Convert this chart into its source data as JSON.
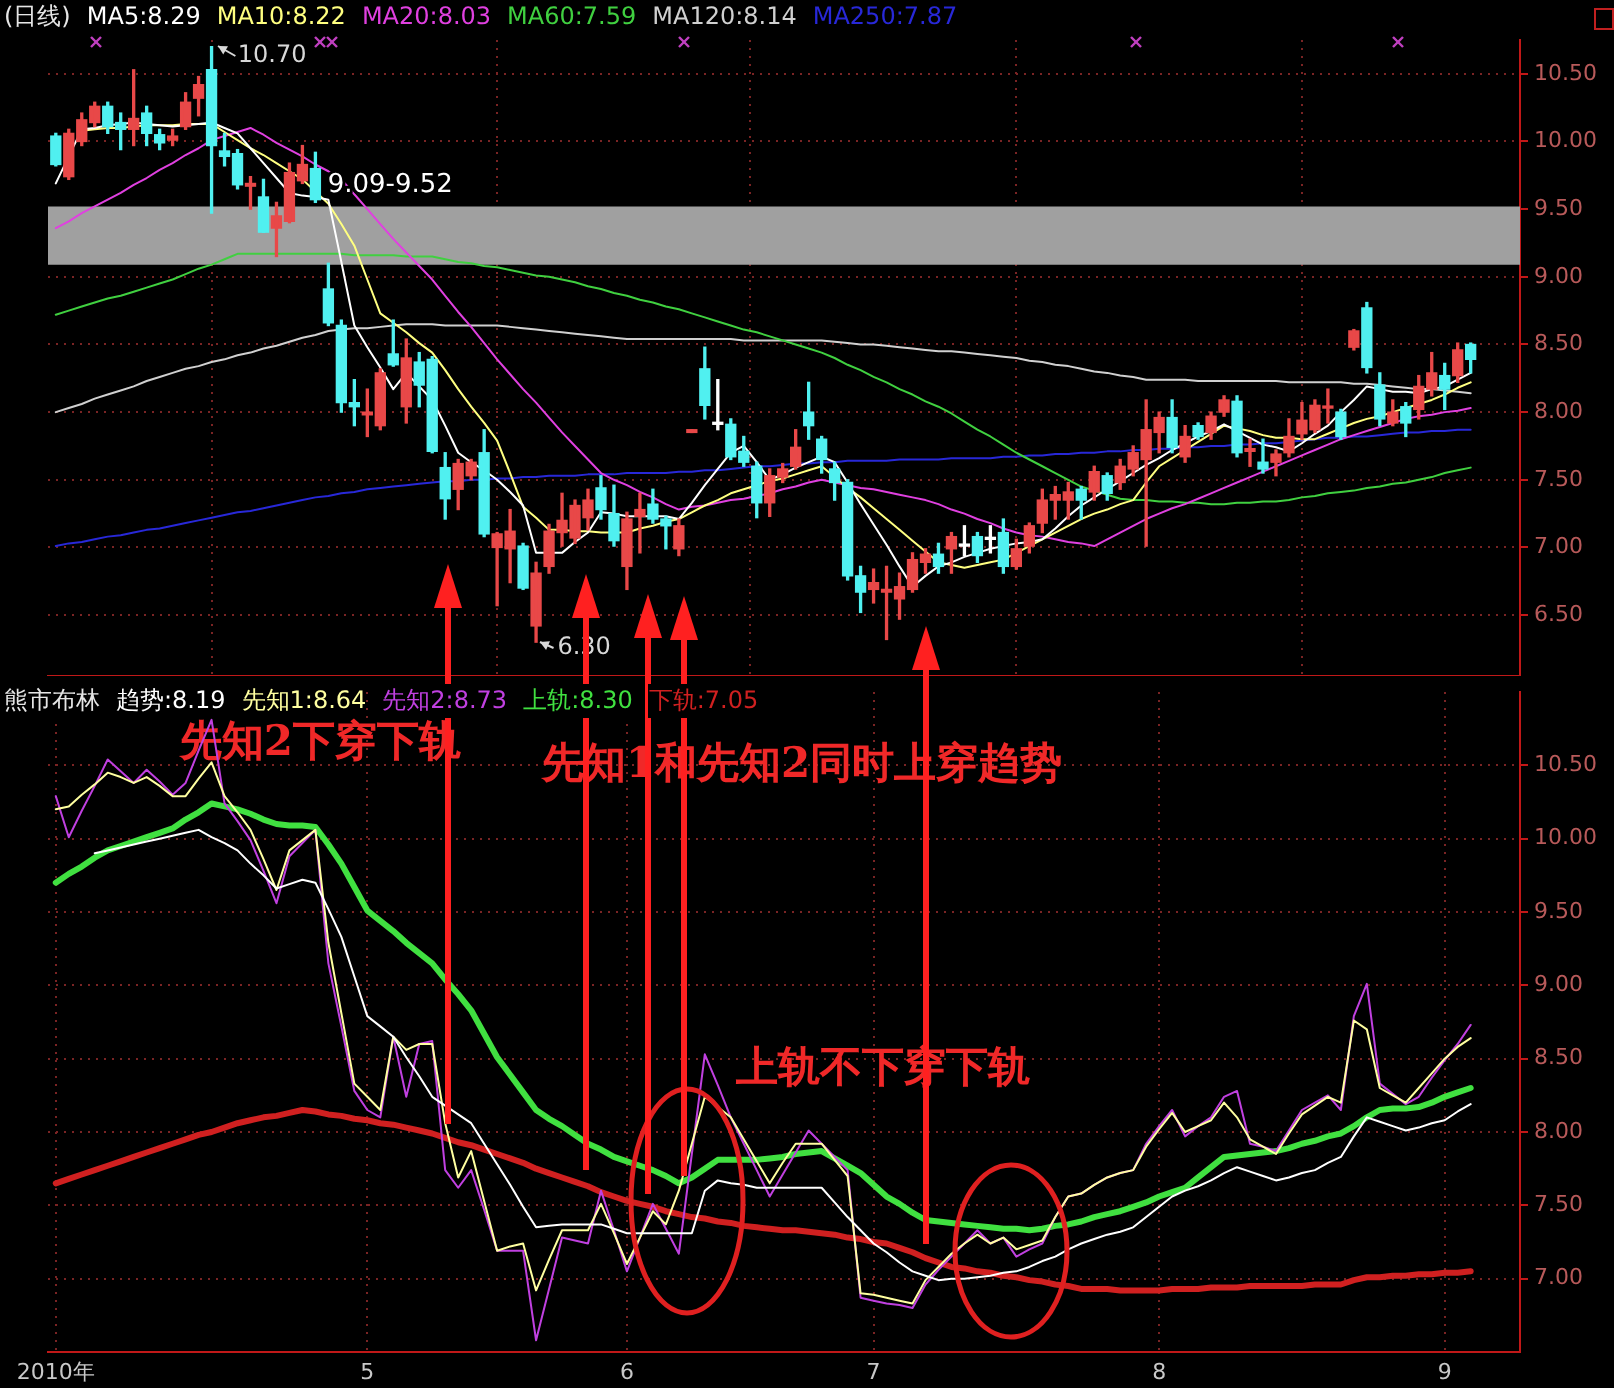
{
  "chart_data": [
    {
      "type": "candlestick",
      "title": "(日线)",
      "legend": "top left",
      "grid": true,
      "marker": "none",
      "tick_labels": "y",
      "categories": [
        null,
        null,
        null,
        null,
        null,
        null,
        null,
        null,
        null,
        null,
        null,
        null,
        null,
        null,
        null,
        null,
        null,
        null,
        null,
        null,
        null,
        null,
        null,
        null,
        null,
        null,
        null,
        null,
        null,
        null,
        null,
        null,
        null,
        null,
        null,
        null,
        null,
        null,
        null,
        null,
        null,
        null,
        null,
        null,
        null,
        null,
        null,
        null,
        null,
        null,
        null,
        null,
        null,
        null,
        null,
        null,
        null,
        null,
        null,
        null,
        null,
        null,
        null,
        null,
        null,
        null,
        null,
        null,
        null,
        null,
        null,
        null,
        null,
        null,
        null,
        null,
        null,
        null,
        null,
        null,
        null,
        null,
        null,
        null,
        null,
        null,
        null,
        null,
        null,
        null,
        null,
        null,
        null,
        null,
        null,
        null,
        null,
        null,
        null,
        null,
        null,
        null,
        null,
        null,
        null,
        null,
        null,
        null,
        null,
        null
      ],
      "ohlc": [
        [
          10.04,
          10.06,
          9.82,
          9.83
        ],
        [
          9.74,
          10.09,
          9.72,
          10.06
        ],
        [
          10.0,
          10.21,
          9.97,
          10.16
        ],
        [
          10.14,
          10.29,
          10.11,
          10.26
        ],
        [
          10.26,
          10.29,
          10.06,
          10.11
        ],
        [
          10.14,
          10.21,
          9.94,
          10.09
        ],
        [
          10.09,
          10.53,
          9.97,
          10.17
        ],
        [
          10.21,
          10.26,
          9.97,
          10.06
        ],
        [
          10.05,
          10.09,
          9.94,
          9.99
        ],
        [
          10.01,
          10.09,
          9.97,
          10.04
        ],
        [
          10.11,
          10.36,
          10.09,
          10.29
        ],
        [
          10.32,
          10.48,
          10.19,
          10.42
        ],
        [
          10.53,
          10.7,
          9.47,
          9.97
        ],
        [
          9.93,
          10.06,
          9.82,
          9.89
        ],
        [
          9.91,
          9.94,
          9.65,
          9.68
        ],
        [
          9.67,
          9.74,
          9.5,
          9.69
        ],
        [
          9.59,
          9.72,
          9.33,
          9.33
        ],
        [
          9.36,
          9.55,
          9.15,
          9.45
        ],
        [
          9.41,
          9.84,
          9.4,
          9.77
        ],
        [
          9.71,
          9.97,
          9.69,
          9.83
        ],
        [
          9.8,
          9.92,
          9.55,
          9.57
        ],
        [
          8.91,
          9.1,
          8.64,
          8.66
        ],
        [
          8.64,
          8.68,
          8.0,
          8.07
        ],
        [
          8.07,
          8.24,
          7.9,
          8.04
        ],
        [
          7.98,
          8.17,
          7.82,
          8.0
        ],
        [
          7.9,
          8.32,
          7.87,
          8.29
        ],
        [
          8.43,
          8.68,
          8.34,
          8.35
        ],
        [
          8.04,
          8.54,
          7.92,
          8.4
        ],
        [
          8.37,
          8.44,
          8.04,
          8.2
        ],
        [
          8.39,
          8.41,
          7.7,
          7.71
        ],
        [
          7.59,
          7.7,
          7.21,
          7.36
        ],
        [
          7.43,
          7.65,
          7.28,
          7.62
        ],
        [
          7.53,
          7.65,
          7.5,
          7.63
        ],
        [
          7.7,
          7.87,
          7.08,
          7.1
        ],
        [
          7.0,
          7.11,
          6.57,
          7.1
        ],
        [
          6.99,
          7.28,
          6.74,
          7.12
        ],
        [
          7.01,
          7.03,
          6.69,
          6.7
        ],
        [
          6.42,
          6.89,
          6.3,
          6.81
        ],
        [
          6.86,
          7.17,
          6.81,
          7.12
        ],
        [
          7.11,
          7.4,
          7.01,
          7.2
        ],
        [
          7.07,
          7.35,
          7.03,
          7.31
        ],
        [
          7.22,
          7.43,
          7.13,
          7.35
        ],
        [
          7.44,
          7.53,
          7.21,
          7.28
        ],
        [
          7.25,
          7.46,
          7.01,
          7.05
        ],
        [
          6.86,
          7.26,
          6.69,
          7.21
        ],
        [
          7.23,
          7.4,
          6.96,
          7.28
        ],
        [
          7.32,
          7.43,
          7.18,
          7.21
        ],
        [
          7.21,
          7.23,
          6.99,
          7.16
        ],
        [
          6.99,
          7.21,
          6.94,
          7.16
        ],
        [
          7.85,
          7.87,
          7.85,
          7.87
        ],
        [
          8.32,
          8.48,
          7.95,
          8.05
        ],
        [
          7.91,
          8.24,
          7.87,
          7.91
        ],
        [
          7.91,
          7.95,
          7.65,
          7.67
        ],
        [
          7.71,
          7.82,
          7.6,
          7.63
        ],
        [
          7.6,
          7.63,
          7.22,
          7.33
        ],
        [
          7.33,
          7.58,
          7.23,
          7.53
        ],
        [
          7.52,
          7.62,
          7.48,
          7.58
        ],
        [
          7.6,
          7.87,
          7.58,
          7.74
        ],
        [
          8.0,
          8.22,
          7.8,
          7.9
        ],
        [
          7.8,
          7.82,
          7.55,
          7.65
        ],
        [
          7.58,
          7.63,
          7.35,
          7.48
        ],
        [
          7.48,
          7.5,
          6.76,
          6.79
        ],
        [
          6.79,
          6.86,
          6.52,
          6.67
        ],
        [
          6.69,
          6.84,
          6.59,
          6.74
        ],
        [
          6.67,
          6.86,
          6.32,
          6.69
        ],
        [
          6.62,
          6.81,
          6.47,
          6.71
        ],
        [
          6.69,
          6.96,
          6.67,
          6.91
        ],
        [
          6.89,
          6.99,
          6.81,
          6.95
        ],
        [
          6.95,
          7.03,
          6.81,
          6.86
        ],
        [
          6.99,
          7.11,
          6.81,
          7.08
        ],
        [
          7.01,
          7.16,
          6.94,
          7.01
        ],
        [
          7.08,
          7.11,
          6.89,
          6.94
        ],
        [
          7.06,
          7.16,
          6.96,
          7.06
        ],
        [
          7.11,
          7.21,
          6.81,
          6.86
        ],
        [
          6.86,
          7.06,
          6.84,
          6.99
        ],
        [
          7.01,
          7.18,
          6.96,
          7.16
        ],
        [
          7.18,
          7.43,
          7.11,
          7.35
        ],
        [
          7.35,
          7.45,
          7.21,
          7.39
        ],
        [
          7.35,
          7.48,
          7.21,
          7.41
        ],
        [
          7.43,
          7.45,
          7.21,
          7.35
        ],
        [
          7.41,
          7.6,
          7.35,
          7.56
        ],
        [
          7.53,
          7.55,
          7.35,
          7.4
        ],
        [
          7.48,
          7.65,
          7.43,
          7.6
        ],
        [
          7.58,
          7.75,
          7.53,
          7.7
        ],
        [
          7.65,
          8.09,
          7.01,
          7.87
        ],
        [
          7.85,
          8.0,
          7.7,
          7.96
        ],
        [
          7.96,
          8.09,
          7.7,
          7.74
        ],
        [
          7.67,
          7.9,
          7.63,
          7.82
        ],
        [
          7.9,
          7.92,
          7.8,
          7.82
        ],
        [
          7.85,
          8.0,
          7.8,
          7.97
        ],
        [
          8.0,
          8.12,
          7.97,
          8.09
        ],
        [
          8.08,
          8.12,
          7.67,
          7.7
        ],
        [
          7.71,
          7.8,
          7.6,
          7.73
        ],
        [
          7.63,
          7.8,
          7.55,
          7.58
        ],
        [
          7.63,
          7.72,
          7.53,
          7.69
        ],
        [
          7.7,
          7.95,
          7.67,
          7.82
        ],
        [
          7.84,
          8.07,
          7.8,
          7.94
        ],
        [
          7.87,
          8.09,
          7.85,
          8.05
        ],
        [
          8.03,
          8.17,
          7.92,
          8.04
        ],
        [
          8.0,
          8.02,
          7.8,
          7.82
        ],
        [
          8.48,
          8.61,
          8.46,
          8.6
        ],
        [
          8.77,
          8.81,
          8.29,
          8.33
        ],
        [
          8.2,
          8.29,
          7.9,
          7.95
        ],
        [
          7.92,
          8.09,
          7.9,
          8.0
        ],
        [
          8.04,
          8.07,
          7.82,
          7.92
        ],
        [
          8.02,
          8.27,
          7.95,
          8.19
        ],
        [
          8.17,
          8.44,
          8.12,
          8.29
        ],
        [
          8.27,
          8.36,
          8.02,
          8.17
        ],
        [
          8.27,
          8.51,
          8.22,
          8.46
        ],
        [
          8.5,
          8.51,
          8.29,
          8.39
        ]
      ],
      "colors": [
        "#50f0f0",
        "#e84848",
        "#e84848",
        "#e84848",
        "#50f0f0",
        "#50f0f0",
        "#e84848",
        "#50f0f0",
        "#50f0f0",
        "#e84848",
        "#e84848",
        "#e84848",
        "#50f0f0",
        "#50f0f0",
        "#50f0f0",
        "#e84848",
        "#50f0f0",
        "#e84848",
        "#e84848",
        "#e84848",
        "#50f0f0",
        "#50f0f0",
        "#50f0f0",
        "#50f0f0",
        "#e84848",
        "#e84848",
        "#50f0f0",
        "#e84848",
        "#50f0f0",
        "#50f0f0",
        "#50f0f0",
        "#e84848",
        "#e84848",
        "#50f0f0",
        "#e84848",
        "#e84848",
        "#50f0f0",
        "#e84848",
        "#e84848",
        "#e84848",
        "#e84848",
        "#e84848",
        "#50f0f0",
        "#50f0f0",
        "#e84848",
        "#e84848",
        "#50f0f0",
        "#50f0f0",
        "#e84848",
        "#e84848",
        "#50f0f0",
        "#ffffff",
        "#50f0f0",
        "#50f0f0",
        "#50f0f0",
        "#e84848",
        "#e84848",
        "#e84848",
        "#50f0f0",
        "#50f0f0",
        "#50f0f0",
        "#50f0f0",
        "#50f0f0",
        "#e84848",
        "#e84848",
        "#e84848",
        "#e84848",
        "#e84848",
        "#50f0f0",
        "#e84848",
        "#ffffff",
        "#50f0f0",
        "#ffffff",
        "#50f0f0",
        "#e84848",
        "#e84848",
        "#e84848",
        "#e84848",
        "#e84848",
        "#50f0f0",
        "#e84848",
        "#50f0f0",
        "#e84848",
        "#e84848",
        "#e84848",
        "#e84848",
        "#50f0f0",
        "#e84848",
        "#50f0f0",
        "#e84848",
        "#e84848",
        "#50f0f0",
        "#e84848",
        "#50f0f0",
        "#e84848",
        "#e84848",
        "#e84848",
        "#e84848",
        "#e84848",
        "#50f0f0",
        "#e84848",
        "#50f0f0",
        "#50f0f0",
        "#e84848",
        "#50f0f0",
        "#e84848",
        "#e84848",
        "#50f0f0",
        "#e84848",
        "#50f0f0"
      ],
      "ylim": [
        6.05,
        10.75
      ],
      "yticks": [
        {
          "value": 6.5,
          "label": "6.50"
        },
        {
          "value": 7,
          "label": "7.00"
        },
        {
          "value": 7.5,
          "label": "7.50"
        },
        {
          "value": 8,
          "label": "8.00"
        },
        {
          "value": 8.5,
          "label": "8.50"
        },
        {
          "value": 9,
          "label": "9.00"
        },
        {
          "value": 9.5,
          "label": "9.50"
        },
        {
          "value": 10,
          "label": "10.00"
        },
        {
          "value": 10.5,
          "label": "10.50"
        }
      ],
      "bands": [
        {
          "axis": "y",
          "from": 9.09,
          "to": 9.52,
          "label": "9.09-9.52",
          "color": "#a0a0a0"
        }
      ],
      "annotations": [
        "10.70",
        "6.30"
      ],
      "series": [
        {
          "type": "line",
          "name": "MA5:8.29",
          "color": "#ffffff",
          "values": [
            9.69,
            9.89,
            10.09,
            10.1,
            10.12,
            10.13,
            10.14,
            10.13,
            10.12,
            10.11,
            10.12,
            10.13,
            10.14,
            10.1,
            10.06,
            9.95,
            9.84,
            9.73,
            9.62,
            9.6,
            9.59,
            9.57,
            9.11,
            8.64,
            8.48,
            8.33,
            8.17,
            8.29,
            8.19,
            8.09,
            7.9,
            7.7,
            7.63,
            7.57,
            7.5,
            7.41,
            7.31,
            6.96,
            6.96,
            6.96,
            7.04,
            7.11,
            7.26,
            7.25,
            7.23,
            7.23,
            7.23,
            7.23,
            7.21,
            7.33,
            7.46,
            7.58,
            7.7,
            7.75,
            7.63,
            7.5,
            7.54,
            7.59,
            7.63,
            7.67,
            7.63,
            7.48,
            7.32,
            7.17,
            7.02,
            6.86,
            6.71,
            6.79,
            6.86,
            6.89,
            6.93,
            6.96,
            6.99,
            7.01,
            7.03,
            7.04,
            7.06,
            7.14,
            7.23,
            7.31,
            7.37,
            7.43,
            7.49,
            7.55,
            7.61,
            7.66,
            7.72,
            7.77,
            7.82,
            7.86,
            7.91,
            7.86,
            7.81,
            7.76,
            7.74,
            7.71,
            7.77,
            7.84,
            7.9,
            8.0,
            8.09,
            8.19,
            8.17,
            8.15,
            8.15,
            8.14,
            8.17,
            8.19,
            8.24,
            8.29
          ]
        },
        {
          "type": "line",
          "name": "MA10:8.22",
          "color": "#ffff80",
          "values": [
            null,
            null,
            10.08,
            10.09,
            10.1,
            10.1,
            10.11,
            10.12,
            10.12,
            10.12,
            10.13,
            10.13,
            10.13,
            10.07,
            10.01,
            9.95,
            9.9,
            9.84,
            9.78,
            9.72,
            9.63,
            9.54,
            9.39,
            9.23,
            8.98,
            8.73,
            8.66,
            8.59,
            8.51,
            8.44,
            8.31,
            8.17,
            8.04,
            7.92,
            7.79,
            7.55,
            7.3,
            7.22,
            7.13,
            7.13,
            7.12,
            7.12,
            7.11,
            7.11,
            7.11,
            7.14,
            7.16,
            7.19,
            7.21,
            7.26,
            7.31,
            7.35,
            7.4,
            7.43,
            7.46,
            7.49,
            7.51,
            7.54,
            7.57,
            7.6,
            7.52,
            7.44,
            7.37,
            7.29,
            7.21,
            7.13,
            7.05,
            6.97,
            6.89,
            6.87,
            6.85,
            6.87,
            6.89,
            6.91,
            6.96,
            7.01,
            7.06,
            7.11,
            7.16,
            7.21,
            7.25,
            7.28,
            7.32,
            7.35,
            7.48,
            7.6,
            7.66,
            7.72,
            7.78,
            7.84,
            7.9,
            7.88,
            7.86,
            7.83,
            7.81,
            7.81,
            7.8,
            7.8,
            7.84,
            7.88,
            7.92,
            7.95,
            7.97,
            8.0,
            8.03,
            8.06,
            8.09,
            8.13,
            8.18,
            8.22
          ]
        },
        {
          "type": "line",
          "name": "MA20:8.03",
          "color": "#e040e0",
          "values": [
            9.36,
            9.41,
            9.47,
            9.52,
            9.57,
            9.62,
            9.68,
            9.73,
            9.79,
            9.84,
            9.9,
            9.95,
            10.01,
            10.04,
            10.07,
            10.1,
            10.05,
            9.99,
            9.94,
            9.89,
            9.83,
            9.78,
            9.72,
            9.61,
            9.5,
            9.39,
            9.28,
            9.18,
            9.08,
            8.98,
            8.86,
            8.74,
            8.63,
            8.51,
            8.39,
            8.28,
            8.17,
            8.07,
            7.96,
            7.85,
            7.75,
            7.65,
            7.55,
            7.5,
            7.46,
            7.41,
            7.37,
            7.32,
            7.28,
            7.3,
            7.31,
            7.33,
            7.35,
            7.36,
            7.38,
            7.4,
            7.43,
            7.45,
            7.48,
            7.5,
            7.48,
            7.46,
            7.44,
            7.43,
            7.41,
            7.39,
            7.37,
            7.35,
            7.32,
            7.28,
            7.25,
            7.21,
            7.18,
            7.14,
            7.11,
            7.09,
            7.08,
            7.06,
            7.04,
            7.03,
            7.01,
            7.06,
            7.11,
            7.16,
            7.21,
            7.25,
            7.29,
            7.32,
            7.36,
            7.4,
            7.44,
            7.48,
            7.52,
            7.56,
            7.6,
            7.64,
            7.68,
            7.72,
            7.76,
            7.8,
            7.83,
            7.86,
            7.89,
            7.92,
            7.95,
            7.97,
            7.98,
            8.0,
            8.01,
            8.03
          ]
        },
        {
          "type": "line",
          "name": "MA60:7.59",
          "color": "#40d040",
          "values": [
            8.72,
            8.75,
            8.78,
            8.81,
            8.84,
            8.86,
            8.89,
            8.92,
            8.95,
            8.98,
            9.02,
            9.06,
            9.09,
            9.13,
            9.17,
            9.17,
            9.17,
            9.17,
            9.17,
            9.17,
            9.17,
            9.17,
            9.17,
            9.16,
            9.16,
            9.16,
            9.16,
            9.15,
            9.15,
            9.15,
            9.13,
            9.11,
            9.1,
            9.08,
            9.07,
            9.05,
            9.03,
            9.01,
            9.0,
            8.98,
            8.96,
            8.93,
            8.91,
            8.88,
            8.86,
            8.83,
            8.81,
            8.78,
            8.76,
            8.73,
            8.7,
            8.67,
            8.64,
            8.61,
            8.59,
            8.56,
            8.53,
            8.5,
            8.47,
            8.44,
            8.4,
            8.35,
            8.31,
            8.26,
            8.22,
            8.17,
            8.13,
            8.08,
            8.04,
            7.99,
            7.93,
            7.87,
            7.82,
            7.76,
            7.7,
            7.65,
            7.6,
            7.55,
            7.5,
            7.45,
            7.42,
            7.39,
            7.36,
            7.35,
            7.35,
            7.34,
            7.34,
            7.33,
            7.33,
            7.32,
            7.32,
            7.33,
            7.33,
            7.34,
            7.34,
            7.35,
            7.37,
            7.38,
            7.4,
            7.41,
            7.42,
            7.44,
            7.45,
            7.47,
            7.48,
            7.5,
            7.52,
            7.55,
            7.57,
            7.59
          ]
        },
        {
          "type": "line",
          "name": "MA120:8.14",
          "color": "#d0d0d0",
          "values": [
            8.0,
            8.03,
            8.06,
            8.1,
            8.13,
            8.16,
            8.19,
            8.23,
            8.26,
            8.29,
            8.32,
            8.34,
            8.37,
            8.39,
            8.42,
            8.44,
            8.47,
            8.49,
            8.52,
            8.55,
            8.57,
            8.6,
            8.61,
            8.62,
            8.62,
            8.63,
            8.64,
            8.65,
            8.65,
            8.65,
            8.64,
            8.64,
            8.64,
            8.64,
            8.64,
            8.63,
            8.62,
            8.61,
            8.6,
            8.59,
            8.58,
            8.57,
            8.56,
            8.55,
            8.54,
            8.54,
            8.54,
            8.54,
            8.54,
            8.54,
            8.54,
            8.54,
            8.54,
            8.53,
            8.53,
            8.53,
            8.53,
            8.53,
            8.53,
            8.53,
            8.52,
            8.51,
            8.5,
            8.5,
            8.49,
            8.48,
            8.47,
            8.46,
            8.45,
            8.45,
            8.44,
            8.43,
            8.42,
            8.41,
            8.4,
            8.38,
            8.37,
            8.35,
            8.34,
            8.32,
            8.3,
            8.29,
            8.27,
            8.26,
            8.24,
            8.24,
            8.24,
            8.24,
            8.23,
            8.23,
            8.23,
            8.23,
            8.23,
            8.23,
            8.23,
            8.22,
            8.22,
            8.22,
            8.22,
            8.22,
            8.21,
            8.21,
            8.2,
            8.19,
            8.18,
            8.17,
            8.17,
            8.16,
            8.15,
            8.14
          ]
        },
        {
          "type": "line",
          "name": "MA250:7.87",
          "color": "#2828d8",
          "values": [
            7.01,
            7.03,
            7.04,
            7.06,
            7.08,
            7.09,
            7.11,
            7.13,
            7.14,
            7.16,
            7.18,
            7.2,
            7.22,
            7.24,
            7.26,
            7.27,
            7.29,
            7.31,
            7.33,
            7.35,
            7.37,
            7.38,
            7.4,
            7.41,
            7.43,
            7.44,
            7.45,
            7.46,
            7.47,
            7.48,
            7.49,
            7.49,
            7.5,
            7.5,
            7.51,
            7.51,
            7.52,
            7.52,
            7.53,
            7.53,
            7.53,
            7.54,
            7.54,
            7.54,
            7.55,
            7.55,
            7.55,
            7.55,
            7.56,
            7.56,
            7.57,
            7.57,
            7.58,
            7.59,
            7.6,
            7.6,
            7.61,
            7.62,
            7.62,
            7.63,
            7.63,
            7.64,
            7.64,
            7.64,
            7.64,
            7.65,
            7.65,
            7.65,
            7.65,
            7.66,
            7.66,
            7.66,
            7.66,
            7.67,
            7.67,
            7.68,
            7.68,
            7.69,
            7.69,
            7.7,
            7.7,
            7.71,
            7.71,
            7.72,
            7.72,
            7.73,
            7.73,
            7.74,
            7.74,
            7.75,
            7.75,
            7.76,
            7.76,
            7.77,
            7.77,
            7.78,
            7.79,
            7.8,
            7.81,
            7.81,
            7.82,
            7.82,
            7.83,
            7.84,
            7.85,
            7.85,
            7.86,
            7.86,
            7.87,
            7.87
          ]
        }
      ]
    },
    {
      "type": "line",
      "title": "熊市布林",
      "legend": "top left",
      "grid": true,
      "marker": "none",
      "categories": [
        "2010年",
        null,
        null,
        null,
        null,
        null,
        null,
        null,
        null,
        null,
        null,
        null,
        null,
        null,
        null,
        null,
        null,
        null,
        null,
        null,
        null,
        null,
        null,
        null,
        "5",
        null,
        null,
        null,
        null,
        null,
        null,
        null,
        null,
        null,
        null,
        null,
        null,
        null,
        null,
        null,
        null,
        null,
        null,
        null,
        "6",
        null,
        null,
        null,
        null,
        null,
        null,
        null,
        null,
        null,
        null,
        null,
        null,
        null,
        null,
        null,
        null,
        null,
        null,
        "7",
        null,
        null,
        null,
        null,
        null,
        null,
        null,
        null,
        null,
        null,
        null,
        null,
        null,
        null,
        null,
        null,
        null,
        null,
        null,
        null,
        null,
        "8",
        null,
        null,
        null,
        null,
        null,
        null,
        null,
        null,
        null,
        null,
        null,
        null,
        null,
        null,
        null,
        null,
        null,
        null,
        null,
        null,
        null,
        "9",
        null,
        null
      ],
      "ylim": [
        6.5,
        11.0
      ],
      "yticks": [
        {
          "value": 7,
          "label": "7.00"
        },
        {
          "value": 7.5,
          "label": "7.50"
        },
        {
          "value": 8,
          "label": "8.00"
        },
        {
          "value": 8.5,
          "label": "8.50"
        },
        {
          "value": 9,
          "label": "9.00"
        },
        {
          "value": 9.5,
          "label": "9.50"
        },
        {
          "value": 10,
          "label": "10.00"
        },
        {
          "value": 10.5,
          "label": "10.50"
        }
      ],
      "annotations": [
        "先知2下穿下轨",
        "先知1和先知2同时上穿趋势",
        "上轨不下穿下轨"
      ],
      "series": [
        {
          "name": "趋势:8.19",
          "color": "#ffffff",
          "values": [
            null,
            null,
            null,
            9.9,
            9.92,
            9.94,
            9.96,
            9.98,
            10.0,
            10.02,
            10.04,
            10.06,
            10.01,
            9.97,
            9.92,
            9.83,
            9.75,
            9.66,
            9.69,
            9.72,
            9.7,
            9.52,
            9.33,
            9.06,
            8.79,
            8.72,
            8.65,
            8.51,
            8.38,
            8.24,
            8.18,
            8.12,
            8.06,
            7.92,
            7.78,
            7.64,
            7.49,
            7.35,
            7.36,
            7.37,
            7.37,
            7.37,
            7.37,
            7.34,
            7.31,
            7.31,
            7.31,
            7.31,
            7.31,
            7.31,
            7.6,
            7.67,
            7.65,
            7.64,
            7.62,
            7.62,
            7.62,
            7.62,
            7.62,
            7.62,
            7.52,
            7.42,
            7.33,
            7.24,
            7.18,
            7.11,
            7.05,
            7.02,
            6.99,
            7.0,
            7.0,
            7.01,
            7.02,
            7.04,
            7.05,
            7.08,
            7.12,
            7.15,
            7.2,
            7.24,
            7.27,
            7.3,
            7.32,
            7.35,
            7.42,
            7.49,
            7.56,
            7.6,
            7.63,
            7.67,
            7.72,
            7.76,
            7.73,
            7.7,
            7.67,
            7.69,
            7.72,
            7.74,
            7.79,
            7.83,
            7.97,
            8.1,
            8.07,
            8.04,
            8.01,
            8.03,
            8.06,
            8.08,
            8.14,
            8.19
          ]
        },
        {
          "name": "先知1:8.64",
          "color": "#ffffa0",
          "values": [
            10.2,
            10.22,
            10.3,
            10.37,
            10.45,
            10.42,
            10.38,
            10.42,
            10.36,
            10.29,
            10.29,
            10.41,
            10.52,
            10.29,
            10.18,
            10.06,
            9.86,
            9.65,
            9.92,
            9.99,
            10.06,
            9.29,
            8.81,
            8.33,
            8.24,
            8.15,
            8.65,
            8.56,
            8.6,
            8.6,
            8.06,
            7.69,
            7.87,
            7.53,
            7.19,
            7.22,
            7.24,
            6.92,
            7.13,
            7.33,
            7.33,
            7.33,
            7.51,
            7.31,
            7.1,
            7.28,
            7.46,
            7.37,
            7.6,
            7.92,
            8.24,
            8.17,
            8.1,
            7.95,
            7.8,
            7.65,
            7.79,
            7.92,
            7.92,
            7.92,
            7.81,
            7.7,
            6.9,
            6.89,
            6.87,
            6.85,
            6.83,
            6.99,
            7.08,
            7.17,
            7.24,
            7.3,
            7.24,
            7.28,
            7.2,
            7.23,
            7.26,
            7.42,
            7.56,
            7.58,
            7.64,
            7.69,
            7.72,
            7.74,
            7.9,
            8.02,
            8.13,
            8.0,
            8.04,
            8.08,
            8.2,
            8.1,
            7.95,
            7.9,
            7.85,
            7.99,
            8.12,
            8.18,
            8.24,
            8.2,
            8.76,
            8.7,
            8.3,
            8.25,
            8.2,
            8.3,
            8.4,
            8.5,
            8.58,
            8.64
          ]
        },
        {
          "name": "先知2:8.73",
          "color": "#c040e0",
          "values": [
            10.29,
            10.01,
            10.19,
            10.36,
            10.54,
            10.46,
            10.38,
            10.47,
            10.39,
            10.3,
            10.38,
            10.6,
            10.81,
            10.24,
            10.12,
            9.99,
            9.78,
            9.56,
            9.88,
            9.97,
            10.06,
            9.15,
            8.72,
            8.28,
            8.15,
            8.1,
            8.65,
            8.24,
            8.6,
            8.62,
            7.74,
            7.62,
            7.74,
            7.47,
            7.19,
            7.19,
            7.19,
            6.58,
            6.93,
            7.28,
            7.26,
            7.24,
            7.6,
            7.33,
            7.05,
            7.28,
            7.51,
            7.34,
            7.17,
            7.85,
            8.53,
            8.32,
            8.1,
            7.92,
            7.74,
            7.56,
            7.71,
            7.86,
            8.01,
            7.92,
            7.83,
            7.74,
            6.87,
            6.85,
            6.83,
            6.82,
            6.8,
            6.96,
            7.06,
            7.15,
            7.24,
            7.33,
            7.24,
            7.28,
            7.15,
            7.2,
            7.24,
            7.42,
            7.56,
            7.58,
            7.64,
            7.69,
            7.72,
            7.74,
            7.92,
            8.04,
            8.15,
            7.97,
            8.04,
            8.1,
            8.24,
            8.28,
            7.92,
            7.9,
            7.87,
            8.01,
            8.15,
            8.2,
            8.25,
            8.15,
            8.79,
            9.01,
            8.33,
            8.26,
            8.19,
            8.24,
            8.37,
            8.49,
            8.6,
            8.73
          ]
        },
        {
          "name": "上轨:8.30",
          "color": "#40e040",
          "values": [
            9.7,
            9.76,
            9.81,
            9.87,
            9.92,
            9.95,
            9.98,
            10.01,
            10.04,
            10.07,
            10.13,
            10.18,
            10.24,
            10.22,
            10.2,
            10.17,
            10.13,
            10.1,
            10.09,
            10.09,
            10.08,
            9.96,
            9.83,
            9.67,
            9.51,
            9.44,
            9.37,
            9.29,
            9.22,
            9.15,
            9.04,
            8.94,
            8.83,
            8.67,
            8.51,
            8.39,
            8.27,
            8.15,
            8.09,
            8.04,
            7.98,
            7.92,
            7.88,
            7.83,
            7.8,
            7.77,
            7.74,
            7.7,
            7.65,
            7.69,
            7.75,
            7.81,
            7.81,
            7.81,
            7.81,
            7.82,
            7.83,
            7.85,
            7.86,
            7.87,
            7.82,
            7.77,
            7.72,
            7.64,
            7.56,
            7.51,
            7.45,
            7.4,
            7.39,
            7.38,
            7.37,
            7.36,
            7.35,
            7.34,
            7.34,
            7.33,
            7.34,
            7.36,
            7.37,
            7.39,
            7.42,
            7.44,
            7.46,
            7.49,
            7.52,
            7.56,
            7.59,
            7.62,
            7.69,
            7.76,
            7.83,
            7.84,
            7.85,
            7.86,
            7.87,
            7.89,
            7.92,
            7.94,
            7.97,
            7.99,
            8.04,
            8.1,
            8.15,
            8.16,
            8.16,
            8.17,
            8.2,
            8.24,
            8.27,
            8.3
          ]
        },
        {
          "name": "下轨:7.05",
          "color": "#d02020",
          "values": [
            7.65,
            7.68,
            7.71,
            7.74,
            7.77,
            7.8,
            7.83,
            7.86,
            7.89,
            7.92,
            7.95,
            7.98,
            8.0,
            8.03,
            8.06,
            8.08,
            8.1,
            8.11,
            8.13,
            8.15,
            8.14,
            8.12,
            8.11,
            8.09,
            8.08,
            8.06,
            8.05,
            8.03,
            8.01,
            7.99,
            7.96,
            7.93,
            7.91,
            7.88,
            7.85,
            7.82,
            7.79,
            7.75,
            7.72,
            7.69,
            7.66,
            7.63,
            7.59,
            7.56,
            7.53,
            7.51,
            7.49,
            7.46,
            7.44,
            7.42,
            7.41,
            7.39,
            7.38,
            7.36,
            7.35,
            7.34,
            7.33,
            7.33,
            7.32,
            7.31,
            7.3,
            7.28,
            7.27,
            7.25,
            7.24,
            7.21,
            7.18,
            7.14,
            7.11,
            7.08,
            7.07,
            7.05,
            7.04,
            7.02,
            7.01,
            6.99,
            6.98,
            6.96,
            6.95,
            6.93,
            6.93,
            6.93,
            6.92,
            6.92,
            6.92,
            6.92,
            6.93,
            6.93,
            6.93,
            6.94,
            6.94,
            6.94,
            6.95,
            6.95,
            6.95,
            6.95,
            6.95,
            6.96,
            6.96,
            6.96,
            6.99,
            7.01,
            7.01,
            7.02,
            7.02,
            7.03,
            7.03,
            7.04,
            7.04,
            7.05
          ]
        }
      ]
    }
  ]
}
